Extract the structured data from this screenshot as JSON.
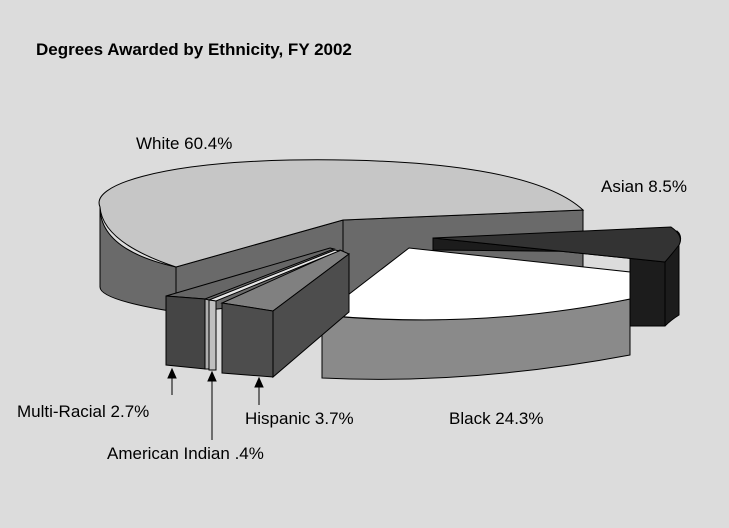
{
  "chart_data": {
    "type": "pie",
    "style": "3d-exploded",
    "title": "Degrees Awarded by Ethnicity, FY 2002",
    "slices": [
      {
        "name": "White",
        "value": 60.4,
        "label": "White 60.4%",
        "color": "#c6c6c6",
        "side_color": "#6a6a6a"
      },
      {
        "name": "Asian",
        "value": 8.5,
        "label": "Asian 8.5%",
        "color": "#333333",
        "side_color": "#1c1c1c"
      },
      {
        "name": "Black",
        "value": 24.3,
        "label": "Black 24.3%",
        "color": "#ffffff",
        "side_color": "#8a8a8a"
      },
      {
        "name": "Hispanic",
        "value": 3.7,
        "label": "Hispanic 3.7%",
        "color": "#808080",
        "side_color": "#4d4d4d"
      },
      {
        "name": "American Indian",
        "value": 0.4,
        "label": "American Indian .4%",
        "color": "#e6e6e6",
        "side_color": "#bfbfbf"
      },
      {
        "name": "Multi-Racial",
        "value": 2.7,
        "label": "Multi-Racial 2.7%",
        "color": "#666666",
        "side_color": "#454545"
      }
    ]
  }
}
